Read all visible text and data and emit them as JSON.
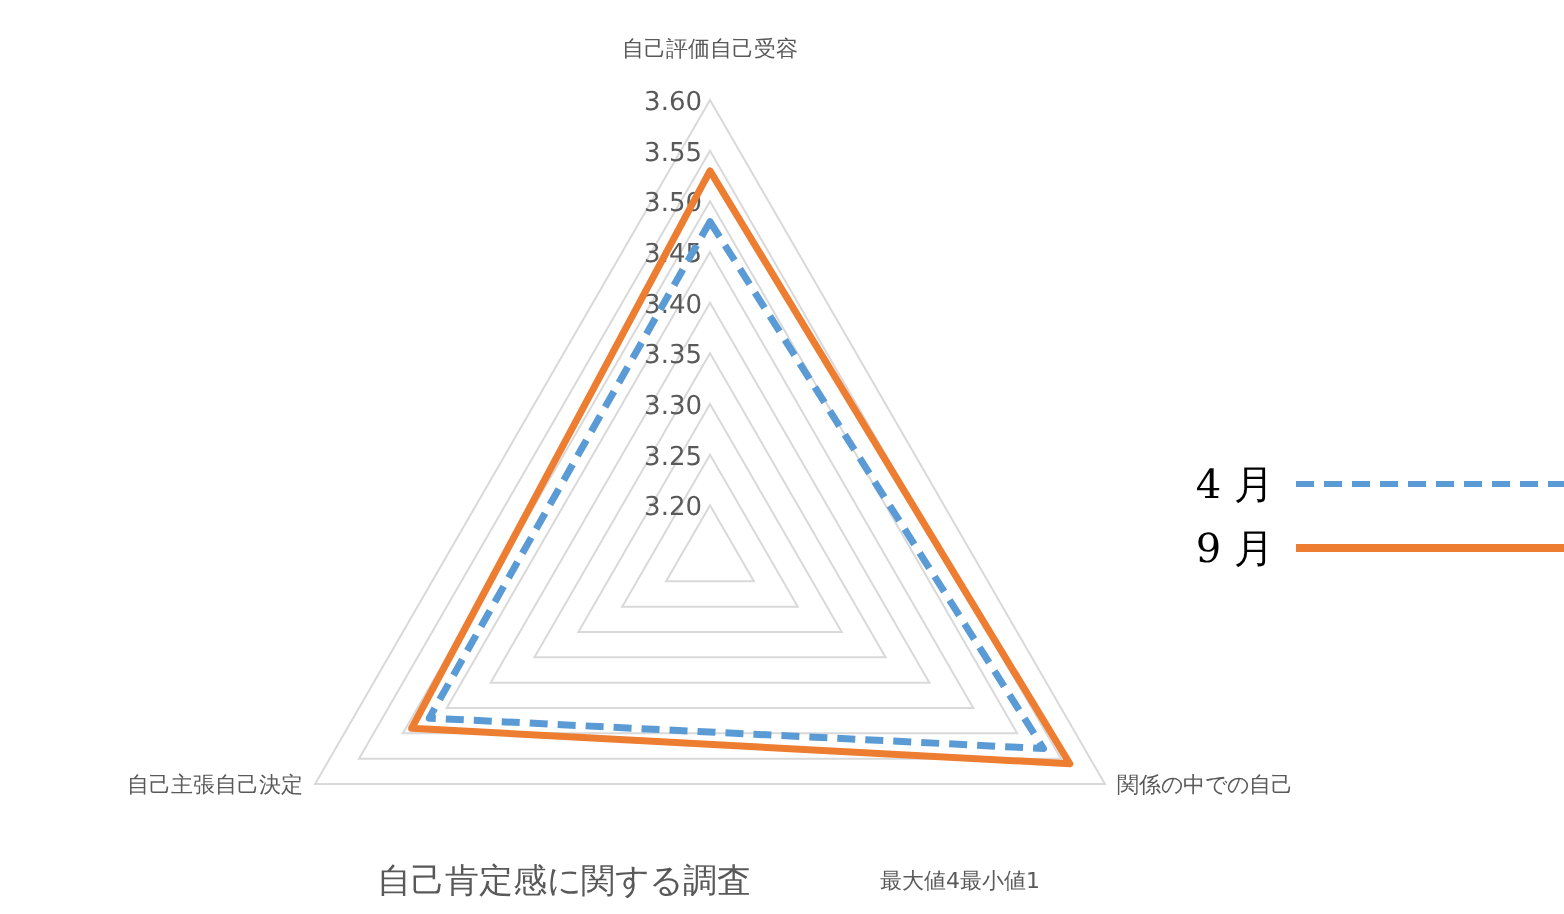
{
  "chart_data": {
    "type": "radar",
    "title": "自己肯定感に関する調査",
    "annotations": [
      "最大値4最小値1"
    ],
    "categories": [
      "自己評価自己受容",
      "関係の中での自己",
      "自己主張自己決定"
    ],
    "ylim": [
      3.15,
      3.6
    ],
    "yticks": [
      {
        "value": 3.2,
        "label": "3.20"
      },
      {
        "value": 3.25,
        "label": "3.25"
      },
      {
        "value": 3.3,
        "label": "3.30"
      },
      {
        "value": 3.35,
        "label": "3.35"
      },
      {
        "value": 3.4,
        "label": "3.40"
      },
      {
        "value": 3.45,
        "label": "3.45"
      },
      {
        "value": 3.5,
        "label": "3.50"
      },
      {
        "value": 3.55,
        "label": "3.55"
      },
      {
        "value": 3.6,
        "label": "3.60"
      }
    ],
    "grid": true,
    "legend": "right",
    "marker": "none",
    "series": [
      {
        "name": "4 月",
        "color": "#5b9bd5",
        "line_style": "dashed",
        "values": [
          3.48,
          3.53,
          3.47
        ]
      },
      {
        "name": "9 月",
        "color": "#ed7d31",
        "line_style": "solid",
        "values": [
          3.53,
          3.56,
          3.49
        ]
      }
    ]
  }
}
